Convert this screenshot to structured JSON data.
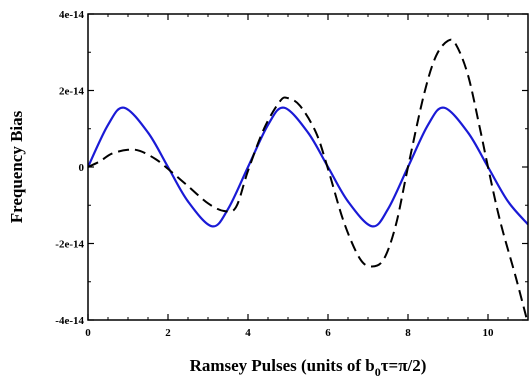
{
  "chart_data": {
    "type": "line",
    "title": "",
    "xlabel": {
      "prefix": "Ramsey Pulses (units of b",
      "subscript": "0",
      "suffix": "τ=π/2)"
    },
    "ylabel": "Frequency Bias",
    "xlim": [
      0,
      11
    ],
    "ylim": [
      -4e-14,
      4e-14
    ],
    "x_ticks": [
      0,
      2,
      4,
      6,
      8,
      10
    ],
    "x_tick_labels": [
      "0",
      "2",
      "4",
      "6",
      "8",
      "10"
    ],
    "y_ticks": [
      -4e-14,
      -2e-14,
      0,
      2e-14,
      4e-14
    ],
    "y_tick_labels": [
      "-4e-14",
      "-2e-14",
      "0",
      "2e-14",
      "4e-14"
    ],
    "grid": false,
    "legend": null,
    "series": [
      {
        "style": "solid",
        "color": "#1a1ad6",
        "x": [
          0,
          0.5,
          0.9,
          1.5,
          2.0,
          2.5,
          3.1,
          3.5,
          4.0,
          4.5,
          4.9,
          5.5,
          6.0,
          6.5,
          7.1,
          7.5,
          8.0,
          8.5,
          8.9,
          9.5,
          10.0,
          10.5,
          11.0
        ],
        "y": [
          0,
          1.1e-14,
          1.55e-14,
          9e-15,
          0,
          -9e-15,
          -1.55e-14,
          -1.1e-14,
          0,
          1.1e-14,
          1.55e-14,
          9e-15,
          0,
          -9e-15,
          -1.55e-14,
          -1.1e-14,
          0,
          1.1e-14,
          1.55e-14,
          9e-15,
          0,
          -9e-15,
          -1.5e-14
        ]
      },
      {
        "style": "dashed",
        "color": "#000000",
        "x": [
          0,
          0.3,
          0.6,
          1.0,
          1.3,
          1.7,
          2.0,
          2.5,
          3.0,
          3.4,
          3.7,
          4.0,
          4.4,
          4.8,
          5.0,
          5.3,
          5.7,
          6.0,
          6.4,
          6.8,
          7.1,
          7.4,
          7.7,
          8.0,
          8.4,
          8.7,
          9.0,
          9.2,
          9.5,
          9.8,
          10.0,
          10.3,
          10.7,
          11.0
        ],
        "y": [
          0,
          1.5e-15,
          3.5e-15,
          4.5e-15,
          4.2e-15,
          2e-15,
          -5e-16,
          -5e-15,
          -9.5e-15,
          -1.15e-14,
          -1.05e-14,
          -1e-15,
          1e-14,
          1.72e-14,
          1.8e-14,
          1.6e-14,
          9e-15,
          -5e-16,
          -1.45e-14,
          -2.4e-14,
          -2.6e-14,
          -2.4e-14,
          -1.5e-14,
          0,
          1.9e-14,
          2.9e-14,
          3.3e-14,
          3.2e-14,
          2.4e-14,
          1e-14,
          0,
          -1.4e-14,
          -2.9e-14,
          -4.1e-14
        ]
      }
    ]
  }
}
